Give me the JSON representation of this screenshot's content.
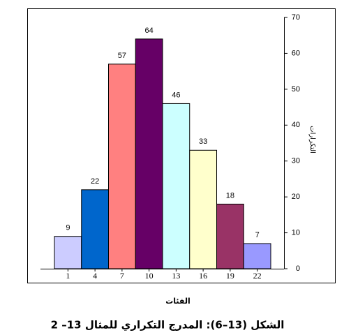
{
  "chart_data": {
    "type": "bar",
    "categories": [
      "1",
      "4",
      "7",
      "10",
      "13",
      "16",
      "19",
      "22"
    ],
    "values": [
      9,
      22,
      57,
      64,
      46,
      33,
      18,
      7
    ],
    "colors": [
      "#ccccff",
      "#0066cc",
      "#ff8080",
      "#660066",
      "#ccffff",
      "#ffffcc",
      "#993366",
      "#9999ff"
    ],
    "ylim": [
      0,
      70
    ],
    "yticks": [
      0,
      10,
      20,
      30,
      40,
      50,
      60,
      70
    ],
    "y_label": "التكرارات",
    "x_label": "الفئات",
    "caption": "الشكل (13–6): المدرج التكراري للمثال 13– 2"
  }
}
